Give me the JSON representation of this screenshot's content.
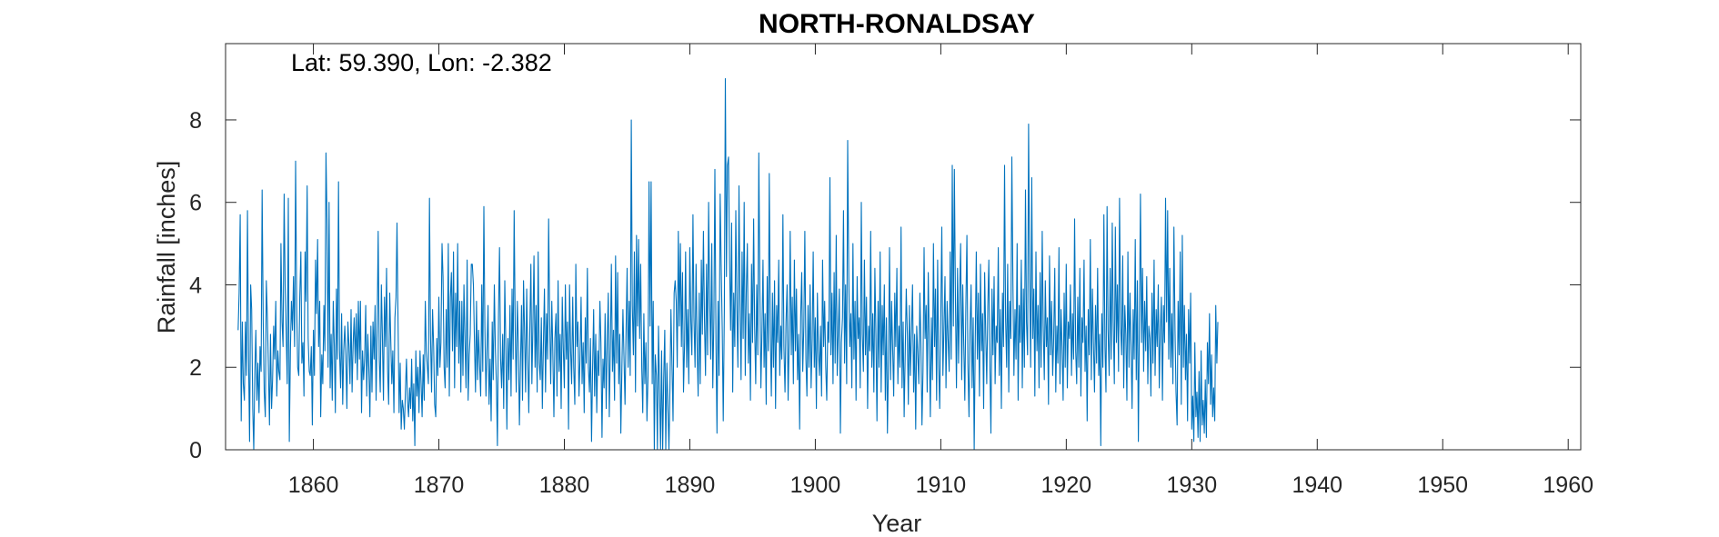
{
  "chart_data": {
    "type": "line",
    "title": "NORTH-RONALDSAY",
    "annotation": "Lat: 59.390, Lon: -2.382",
    "xlabel": "Year",
    "ylabel": "Rainfall [inches]",
    "xlim": [
      1853,
      1961
    ],
    "ylim": [
      0,
      9.85
    ],
    "xticks": [
      1860,
      1870,
      1880,
      1890,
      1900,
      1910,
      1920,
      1930,
      1940,
      1950,
      1960
    ],
    "yticks": [
      0,
      2,
      4,
      6,
      8
    ],
    "grid": false,
    "line_color": "#0072BD",
    "series": [
      {
        "x_start": 1854.0,
        "x_step": 0.08333,
        "values": [
          2.9,
          3.8,
          5.7,
          0.7,
          3.1,
          1.6,
          1.2,
          3.1,
          1.8,
          5.8,
          2.2,
          0.2,
          4.0,
          3.4,
          1.0,
          0.0,
          1.9,
          2.9,
          1.2,
          2.1,
          0.9,
          2.5,
          1.9,
          6.3,
          3.1,
          1.4,
          0.8,
          4.1,
          3.2,
          2.0,
          0.6,
          2.8,
          1.0,
          1.7,
          3.0,
          2.2,
          3.6,
          1.3,
          2.4,
          1.9,
          1.7,
          5.0,
          3.1,
          2.5,
          6.2,
          4.0,
          2.8,
          1.6,
          6.1,
          0.2,
          2.4,
          3.6,
          2.9,
          4.2,
          2.5,
          7.0,
          3.5,
          2.0,
          1.8,
          3.7,
          4.8,
          2.1,
          2.6,
          1.3,
          4.8,
          3.6,
          6.4,
          2.7,
          1.9,
          1.8,
          2.5,
          0.6,
          2.9,
          1.8,
          4.6,
          3.3,
          5.1,
          2.5,
          3.6,
          0.8,
          2.3,
          1.6,
          3.5,
          2.4,
          7.2,
          5.6,
          2.0,
          6.0,
          1.5,
          2.8,
          1.2,
          3.6,
          2.5,
          0.9,
          3.9,
          2.2,
          6.5,
          2.4,
          1.5,
          3.3,
          1.1,
          2.4,
          3.0,
          2.3,
          1.0,
          3.1,
          2.5,
          1.6,
          3.4,
          1.4,
          2.6,
          3.2,
          2.1,
          3.3,
          1.7,
          3.6,
          2.2,
          3.6,
          0.9,
          2.4,
          1.7,
          2.2,
          3.5,
          1.3,
          2.8,
          2.0,
          0.8,
          3.0,
          1.4,
          3.1,
          2.2,
          3.5,
          1.2,
          3.0,
          5.3,
          2.2,
          1.4,
          4.0,
          2.8,
          1.2,
          3.7,
          2.5,
          4.4,
          1.9,
          1.1,
          3.8,
          2.7,
          1.6,
          2.4,
          0.9,
          3.2,
          3.7,
          5.5,
          3.0,
          0.9,
          2.1,
          0.5,
          1.2,
          1.0,
          0.5,
          1.4,
          2.2,
          1.2,
          0.8,
          1.5,
          1.0,
          2.2,
          0.7,
          1.6,
          0.1,
          2.4,
          1.3,
          2.0,
          0.9,
          2.4,
          1.6,
          0.8,
          2.3,
          1.2,
          3.6,
          2.4,
          2.0,
          1.6,
          6.1,
          2.8,
          1.4,
          3.4,
          2.5,
          1.1,
          0.8,
          2.7,
          1.8,
          3.7,
          2.0,
          2.6,
          5.0,
          4.2,
          2.0,
          1.5,
          3.4,
          2.0,
          5.0,
          1.3,
          3.7,
          4.3,
          2.4,
          4.8,
          1.5,
          3.8,
          2.5,
          5.0,
          2.1,
          3.6,
          1.4,
          3.6,
          1.8,
          4.0,
          2.6,
          1.5,
          4.6,
          1.2,
          2.3,
          2.8,
          4.5,
          4.5,
          4.0,
          2.7,
          1.4,
          3.6,
          1.7,
          2.9,
          2.0,
          1.3,
          4.0,
          1.9,
          5.9,
          3.0,
          1.3,
          2.4,
          3.5,
          1.1,
          2.2,
          0.7,
          3.1,
          1.7,
          4.0,
          2.5,
          1.6,
          0.1,
          3.3,
          4.9,
          2.2,
          1.5,
          2.8,
          1.0,
          4.1,
          2.6,
          0.5,
          2.7,
          1.7,
          3.5,
          1.3,
          3.9,
          2.2,
          5.8,
          2.9,
          1.4,
          3.6,
          2.6,
          0.6,
          2.0,
          3.5,
          1.2,
          4.1,
          2.8,
          1.4,
          3.9,
          2.3,
          0.9,
          2.9,
          4.5,
          1.6,
          3.1,
          4.7,
          2.0,
          3.5,
          1.4,
          4.8,
          2.1,
          1.7,
          3.2,
          1.0,
          2.6,
          3.9,
          1.4,
          3.3,
          2.2,
          5.6,
          3.1,
          1.6,
          3.6,
          2.4,
          0.8,
          2.7,
          3.3,
          1.3,
          4.1,
          1.9,
          2.8,
          1.0,
          3.7,
          2.5,
          1.5,
          4.0,
          2.2,
          3.1,
          0.5,
          4.0,
          2.4,
          1.6,
          3.7,
          2.0,
          1.1,
          4.5,
          2.5,
          3.1,
          1.3,
          2.2,
          3.7,
          1.6,
          2.6,
          0.9,
          3.2,
          2.1,
          4.4,
          2.0,
          1.4,
          2.7,
          0.2,
          1.9,
          3.4,
          1.3,
          2.8,
          0.9,
          2.4,
          1.8,
          3.6,
          2.6,
          0.3,
          2.2,
          1.5,
          3.3,
          1.0,
          2.6,
          3.8,
          0.8,
          2.5,
          4.5,
          1.9,
          2.9,
          1.2,
          4.7,
          2.1,
          4.3,
          1.6,
          2.8,
          0.4,
          1.9,
          3.4,
          2.3,
          1.1,
          2.8,
          4.4,
          2.0,
          3.6,
          1.8,
          8.0,
          3.5,
          2.3,
          4.8,
          1.4,
          5.2,
          3.0,
          5.1,
          2.7,
          4.5,
          2.0,
          0.9,
          3.3,
          1.6,
          2.6,
          0.7,
          1.8,
          6.5,
          3.0,
          6.5,
          1.6,
          3.6,
          0.0,
          2.3,
          1.8,
          0.0,
          3.0,
          1.5,
          0.0,
          2.4,
          0.0,
          1.7,
          2.9,
          0.0,
          2.1,
          1.1,
          0.0,
          1.5,
          3.4,
          2.0,
          0.7,
          3.8,
          4.1,
          3.6,
          2.0,
          5.3,
          3.0,
          5.0,
          2.5,
          4.3,
          1.4,
          2.6,
          4.8,
          2.0,
          3.4,
          1.6,
          4.9,
          3.1,
          2.3,
          5.7,
          3.2,
          2.0,
          4.5,
          2.5,
          1.3,
          3.8,
          1.6,
          4.6,
          2.8,
          5.3,
          3.2,
          1.8,
          4.5,
          2.3,
          6.0,
          3.6,
          2.2,
          5.0,
          1.5,
          3.2,
          6.8,
          2.6,
          0.4,
          3.6,
          1.8,
          6.2,
          4.5,
          2.9,
          0.7,
          3.4,
          9.0,
          4.2,
          6.9,
          7.1,
          4.6,
          2.9,
          5.5,
          1.4,
          3.8,
          2.5,
          5.8,
          3.4,
          2.0,
          6.4,
          3.6,
          1.7,
          4.8,
          2.7,
          6.0,
          1.8,
          3.8,
          5.0,
          2.1,
          3.3,
          1.2,
          4.5,
          2.6,
          5.6,
          3.0,
          1.6,
          4.0,
          2.3,
          7.2,
          3.8,
          1.5,
          2.9,
          4.6,
          2.0,
          3.3,
          1.1,
          4.2,
          2.4,
          6.7,
          2.8,
          1.3,
          3.8,
          2.0,
          4.1,
          1.0,
          3.5,
          2.6,
          4.6,
          1.8,
          3.0,
          2.2,
          5.7,
          2.5,
          1.4,
          3.1,
          4.0,
          1.2,
          2.7,
          5.3,
          2.3,
          3.7,
          1.6,
          4.6,
          2.4,
          3.9,
          1.7,
          2.8,
          0.5,
          3.2,
          4.3,
          1.9,
          3.0,
          5.3,
          2.2,
          1.3,
          3.5,
          2.0,
          4.0,
          1.5,
          2.7,
          4.8,
          2.0,
          3.2,
          1.0,
          3.8,
          2.4,
          1.8,
          3.0,
          1.3,
          4.6,
          2.5,
          3.6,
          2.0,
          1.2,
          3.1,
          2.6,
          6.6,
          2.3,
          3.8,
          1.6,
          4.3,
          2.1,
          5.2,
          1.8,
          2.9,
          3.9,
          0.4,
          2.6,
          3.2,
          5.8,
          2.1,
          4.0,
          1.6,
          7.5,
          4.2,
          2.5,
          3.3,
          1.5,
          5.0,
          2.2,
          3.6,
          1.2,
          4.2,
          2.7,
          3.2,
          1.5,
          6.0,
          2.8,
          1.9,
          4.6,
          2.3,
          3.7,
          1.0,
          3.0,
          2.4,
          5.3,
          2.0,
          3.3,
          1.4,
          4.4,
          2.7,
          0.7,
          3.6,
          2.0,
          4.8,
          1.4,
          3.5,
          2.3,
          4.0,
          1.2,
          3.2,
          0.4,
          2.2,
          4.9,
          1.7,
          3.6,
          2.4,
          1.3,
          3.8,
          2.5,
          4.4,
          1.6,
          3.0,
          2.0,
          5.4,
          1.5,
          3.1,
          0.8,
          2.4,
          3.9,
          2.8,
          1.1,
          3.5,
          1.8,
          2.9,
          4.0,
          1.4,
          2.8,
          0.5,
          3.0,
          2.3,
          1.6,
          3.8,
          2.6,
          0.6,
          1.9,
          4.9,
          2.7,
          3.5,
          1.4,
          4.3,
          2.6,
          0.8,
          3.2,
          1.7,
          5.0,
          2.5,
          3.9,
          1.2,
          4.6,
          2.0,
          1.0,
          3.3,
          5.4,
          1.8,
          2.9,
          4.2,
          1.5,
          3.6,
          2.7,
          1.9,
          4.8,
          2.2,
          6.9,
          3.0,
          6.8,
          3.6,
          1.5,
          4.4,
          2.1,
          3.8,
          5.0,
          1.7,
          4.0,
          2.5,
          1.2,
          3.4,
          5.2,
          2.1,
          0.8,
          2.9,
          4.0,
          1.5,
          3.2,
          0.0,
          2.7,
          4.8,
          2.2,
          3.8,
          1.3,
          4.5,
          2.4,
          3.3,
          1.0,
          4.3,
          2.8,
          1.6,
          3.5,
          4.6,
          2.0,
          0.4,
          3.9,
          2.3,
          4.2,
          1.6,
          3.0,
          2.6,
          4.9,
          1.8,
          3.4,
          1.0,
          3.8,
          2.5,
          6.9,
          3.2,
          2.0,
          4.5,
          1.4,
          3.6,
          2.7,
          7.1,
          4.0,
          1.8,
          3.4,
          2.2,
          5.0,
          1.2,
          3.5,
          2.6,
          4.6,
          1.5,
          3.9,
          2.0,
          6.3,
          3.1,
          2.3,
          7.9,
          4.1,
          2.0,
          6.6,
          2.7,
          3.9,
          1.3,
          4.8,
          2.4,
          3.5,
          1.5,
          4.3,
          2.0,
          5.3,
          3.0,
          1.7,
          4.1,
          2.5,
          3.2,
          1.1,
          4.7,
          2.3,
          3.6,
          1.8,
          2.7,
          4.4,
          1.4,
          3.0,
          2.1,
          4.9,
          1.6,
          3.4,
          2.5,
          1.2,
          3.8,
          2.0,
          4.5,
          1.5,
          3.1,
          2.7,
          4.0,
          1.8,
          3.3,
          2.2,
          5.6,
          2.4,
          1.6,
          3.7,
          2.0,
          4.4,
          1.3,
          3.2,
          2.6,
          4.6,
          1.9,
          3.0,
          0.7,
          3.4,
          2.3,
          5.1,
          1.7,
          3.9,
          2.6,
          1.4,
          3.5,
          2.1,
          4.4,
          1.8,
          2.8,
          0.1,
          3.3,
          2.0,
          5.7,
          2.5,
          1.4,
          5.9,
          2.9,
          1.8,
          4.4,
          2.2,
          5.5,
          3.1,
          1.6,
          5.4,
          2.6,
          4.0,
          1.9,
          6.1,
          3.0,
          2.3,
          4.7,
          1.5,
          3.5,
          2.8,
          1.2,
          4.8,
          2.0,
          3.8,
          2.5,
          1.0,
          3.4,
          2.2,
          5.1,
          1.7,
          4.1,
          0.2,
          3.2,
          6.2,
          2.6,
          4.4,
          1.9,
          3.6,
          2.4,
          4.2,
          1.6,
          3.0,
          2.7,
          1.3,
          3.8,
          2.1,
          4.6,
          1.8,
          3.4,
          2.5,
          4.0,
          1.5,
          2.9,
          3.7,
          1.2,
          3.5,
          2.6,
          6.1,
          3.1,
          5.8,
          2.2,
          4.4,
          2.0,
          3.3,
          1.6,
          5.4,
          2.9,
          1.4,
          0.6,
          3.6,
          2.3,
          4.8,
          1.1,
          5.2,
          2.0,
          3.5,
          1.7,
          2.8,
          0.7,
          3.4,
          2.1,
          3.8,
          0.5,
          1.3,
          0.2,
          2.6,
          0.8,
          1.4,
          0.3,
          1.9,
          0.2,
          2.4,
          0.6,
          1.2,
          0.4,
          1.7,
          0.3,
          2.6,
          1.6,
          3.3,
          1.1,
          2.3,
          0.8,
          1.5,
          0.7,
          3.5,
          2.1,
          3.1
        ]
      }
    ]
  }
}
